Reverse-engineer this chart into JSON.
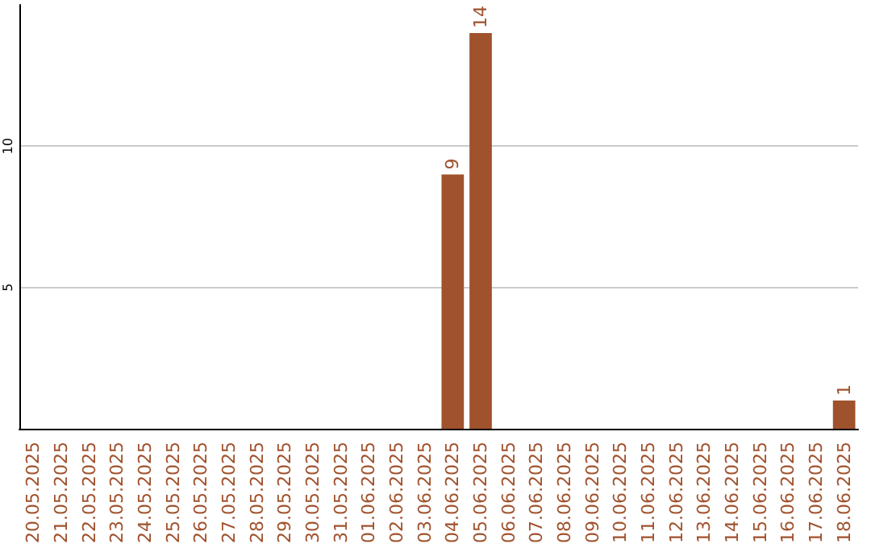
{
  "chart_data": {
    "type": "bar",
    "categories": [
      "20.05.2025",
      "21.05.2025",
      "22.05.2025",
      "23.05.2025",
      "24.05.2025",
      "25.05.2025",
      "26.05.2025",
      "27.05.2025",
      "28.05.2025",
      "29.05.2025",
      "30.05.2025",
      "31.05.2025",
      "01.06.2025",
      "02.06.2025",
      "03.06.2025",
      "04.06.2025",
      "05.06.2025",
      "06.06.2025",
      "07.06.2025",
      "08.06.2025",
      "09.06.2025",
      "10.06.2025",
      "11.06.2025",
      "12.06.2025",
      "13.06.2025",
      "14.06.2025",
      "15.06.2025",
      "16.06.2025",
      "17.06.2025",
      "18.06.2025"
    ],
    "values": [
      0,
      0,
      0,
      0,
      0,
      0,
      0,
      0,
      0,
      0,
      0,
      0,
      0,
      0,
      0,
      9,
      14,
      0,
      0,
      0,
      0,
      0,
      0,
      0,
      0,
      0,
      0,
      0,
      0,
      1
    ],
    "value_labels": [
      null,
      null,
      null,
      null,
      null,
      null,
      null,
      null,
      null,
      null,
      null,
      null,
      null,
      null,
      null,
      "9",
      "14",
      null,
      null,
      null,
      null,
      null,
      null,
      null,
      null,
      null,
      null,
      null,
      null,
      "1"
    ],
    "color": "#a0522d",
    "ylim": [
      0,
      15
    ],
    "yticks": [
      5,
      10
    ],
    "grid": "y"
  }
}
